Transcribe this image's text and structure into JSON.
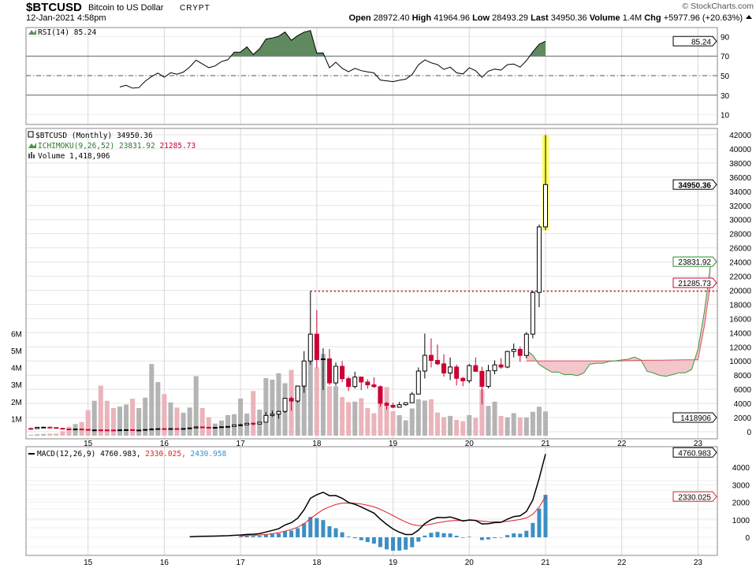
{
  "header": {
    "symbol": "$BTCUSD",
    "name": "Bitcoin to US Dollar",
    "exchange": "CRYPT",
    "datetime": "12-Jan-2021 4:58pm",
    "brand": "© StockCharts.com",
    "open_label": "Open",
    "open": "28972.40",
    "high_label": "High",
    "high": "41964.96",
    "low_label": "Low",
    "low": "28493.29",
    "last_label": "Last",
    "last": "34950.36",
    "volume_label": "Volume",
    "volume": "1.4M",
    "chg_label": "Chg",
    "chg": "+5977.96 (+20.63%)",
    "chg_icon": "triangle-up-icon"
  },
  "chart_data": {
    "type": "candlestick",
    "colors": {
      "up": "#000000",
      "down": "#cc0033",
      "vol_up": "#b4b4b4",
      "vol_down": "#eab4ba",
      "highlight": "#ffff55",
      "rsi": "#000000",
      "rsi_fill": "#5f8a5f",
      "macd": "#000000",
      "signal": "#e02020",
      "hist": "#3b8fc4",
      "span_a": "#3a9a3a",
      "span_b": "#e05060"
    },
    "x_tick_labels": [
      "15",
      "16",
      "17",
      "18",
      "19",
      "20",
      "21",
      "22",
      "23"
    ],
    "rsi": {
      "legend": "RSI(14) 85.24",
      "value_tag": "85.24",
      "ticks": [
        "90",
        "70",
        "50",
        "30",
        "10"
      ],
      "levels": [
        70,
        50,
        30
      ],
      "period": 14
    },
    "price": {
      "legend": "$BTCUSD (Monthly) 34950.36",
      "ichimoku_label": "ICHIMOKU(9,26,52)",
      "ichimoku_a": "23831.92",
      "ichimoku_b": "21285.73",
      "volume_legend": "Volume 1,418,906",
      "last_tag": "34950.36",
      "volume_tag": "1418906",
      "ylim": [
        0,
        42000
      ],
      "ticks": [
        "0",
        "2000",
        "4000",
        "6000",
        "8000",
        "10000",
        "12000",
        "14000",
        "16000",
        "18000",
        "20000",
        "22000",
        "24000",
        "26000",
        "28000",
        "30000",
        "32000",
        "34000",
        "36000",
        "38000",
        "40000",
        "42000"
      ],
      "volume_ticks": [
        "1M",
        "2M",
        "3M",
        "4M",
        "5M",
        "6M"
      ],
      "resistance_line": 19870,
      "dates": [
        "2014-04",
        "2014-05",
        "2014-06",
        "2014-07",
        "2014-08",
        "2014-09",
        "2014-10",
        "2014-11",
        "2014-12",
        "2015-01",
        "2015-02",
        "2015-03",
        "2015-04",
        "2015-05",
        "2015-06",
        "2015-07",
        "2015-08",
        "2015-09",
        "2015-10",
        "2015-11",
        "2015-12",
        "2016-01",
        "2016-02",
        "2016-03",
        "2016-04",
        "2016-05",
        "2016-06",
        "2016-07",
        "2016-08",
        "2016-09",
        "2016-10",
        "2016-11",
        "2016-12",
        "2017-01",
        "2017-02",
        "2017-03",
        "2017-04",
        "2017-05",
        "2017-06",
        "2017-07",
        "2017-08",
        "2017-09",
        "2017-10",
        "2017-11",
        "2017-12",
        "2018-01",
        "2018-02",
        "2018-03",
        "2018-04",
        "2018-05",
        "2018-06",
        "2018-07",
        "2018-08",
        "2018-09",
        "2018-10",
        "2018-11",
        "2018-12",
        "2019-01",
        "2019-02",
        "2019-03",
        "2019-04",
        "2019-05",
        "2019-06",
        "2019-07",
        "2019-08",
        "2019-09",
        "2019-10",
        "2019-11",
        "2019-12",
        "2020-01",
        "2020-02",
        "2020-03",
        "2020-04",
        "2020-05",
        "2020-06",
        "2020-07",
        "2020-08",
        "2020-09",
        "2020-10",
        "2020-11",
        "2020-12",
        "2021-01"
      ],
      "ohlc": [
        [
          457,
          575,
          340,
          447
        ],
        [
          447,
          635,
          420,
          627
        ],
        [
          627,
          680,
          555,
          640
        ],
        [
          640,
          660,
          565,
          586
        ],
        [
          586,
          600,
          445,
          478
        ],
        [
          478,
          500,
          370,
          386
        ],
        [
          386,
          418,
          275,
          338
        ],
        [
          338,
          458,
          315,
          378
        ],
        [
          378,
          385,
          305,
          320
        ],
        [
          320,
          320,
          152,
          217
        ],
        [
          217,
          265,
          200,
          254
        ],
        [
          254,
          300,
          236,
          244
        ],
        [
          244,
          262,
          215,
          236
        ],
        [
          236,
          248,
          225,
          230
        ],
        [
          230,
          268,
          218,
          263
        ],
        [
          263,
          318,
          253,
          284
        ],
        [
          284,
          287,
          162,
          230
        ],
        [
          230,
          245,
          224,
          236
        ],
        [
          236,
          332,
          235,
          314
        ],
        [
          314,
          502,
          300,
          377
        ],
        [
          377,
          467,
          348,
          430
        ],
        [
          430,
          463,
          350,
          369
        ],
        [
          369,
          448,
          366,
          437
        ],
        [
          437,
          440,
          394,
          416
        ],
        [
          416,
          469,
          412,
          448
        ],
        [
          448,
          550,
          436,
          531
        ],
        [
          531,
          780,
          526,
          673
        ],
        [
          673,
          705,
          580,
          624
        ],
        [
          624,
          630,
          470,
          574
        ],
        [
          574,
          640,
          570,
          608
        ],
        [
          608,
          740,
          600,
          700
        ],
        [
          700,
          755,
          680,
          742
        ],
        [
          742,
          980,
          741,
          964
        ],
        [
          964,
          1150,
          752,
          970
        ],
        [
          970,
          1200,
          910,
          1190
        ],
        [
          1190,
          1350,
          890,
          1080
        ],
        [
          1080,
          1400,
          1060,
          1350
        ],
        [
          1350,
          2780,
          1350,
          2300
        ],
        [
          2300,
          2980,
          2100,
          2480
        ],
        [
          2480,
          2950,
          1830,
          2870
        ],
        [
          2870,
          4740,
          2670,
          4720
        ],
        [
          4720,
          4980,
          2970,
          4340
        ],
        [
          4340,
          6470,
          4110,
          6450
        ],
        [
          6450,
          11400,
          5500,
          10000
        ],
        [
          10000,
          19870,
          9500,
          13800
        ],
        [
          13800,
          17200,
          9000,
          10200
        ],
        [
          10200,
          11800,
          5900,
          10300
        ],
        [
          10300,
          11700,
          6600,
          6900
        ],
        [
          6900,
          9800,
          6500,
          9250
        ],
        [
          9250,
          10000,
          7000,
          7500
        ],
        [
          7500,
          7800,
          5750,
          6390
        ],
        [
          6390,
          8500,
          6100,
          7730
        ],
        [
          7730,
          7780,
          5880,
          7030
        ],
        [
          7030,
          7420,
          6100,
          6630
        ],
        [
          6630,
          7680,
          6200,
          6370
        ],
        [
          6370,
          6550,
          3550,
          4020
        ],
        [
          4020,
          4240,
          3150,
          3740
        ],
        [
          3740,
          4100,
          3350,
          3460
        ],
        [
          3460,
          4200,
          3390,
          3820
        ],
        [
          3820,
          4130,
          3680,
          4100
        ],
        [
          4100,
          5620,
          4080,
          5320
        ],
        [
          5320,
          9090,
          5320,
          8580
        ],
        [
          8580,
          13880,
          7530,
          10800
        ],
        [
          10800,
          13200,
          9100,
          10080
        ],
        [
          10080,
          12330,
          9400,
          9600
        ],
        [
          9600,
          10950,
          7800,
          8300
        ],
        [
          8300,
          10500,
          7300,
          9150
        ],
        [
          9150,
          9500,
          6550,
          7550
        ],
        [
          7550,
          7750,
          6430,
          7200
        ],
        [
          7200,
          9580,
          6870,
          9350
        ],
        [
          9350,
          10500,
          8450,
          8540
        ],
        [
          8540,
          9190,
          3850,
          6410
        ],
        [
          6410,
          9460,
          6150,
          8620
        ],
        [
          8620,
          10080,
          8120,
          9450
        ],
        [
          9450,
          10400,
          8900,
          9140
        ],
        [
          9140,
          11440,
          8980,
          11350
        ],
        [
          11350,
          12470,
          10520,
          11650
        ],
        [
          11650,
          12070,
          9880,
          10780
        ],
        [
          10780,
          14100,
          10370,
          13800
        ],
        [
          13800,
          19900,
          13200,
          19700
        ],
        [
          19700,
          29300,
          17600,
          28970
        ],
        [
          28972.4,
          41964.96,
          28493.29,
          34950.36
        ]
      ],
      "volume_millions": [
        0.05,
        0.08,
        0.1,
        0.12,
        0.12,
        0.26,
        0.53,
        0.68,
        0.8,
        1.5,
        2.05,
        2.94,
        2.05,
        1.62,
        1.71,
        1.83,
        2.17,
        1.62,
        2.23,
        4.21,
        3.15,
        2.44,
        1.95,
        1.65,
        1.35,
        1.65,
        3.5,
        1.62,
        1.08,
        0.71,
        0.89,
        1.21,
        1.26,
        2.18,
        1.3,
        2.62,
        1.53,
        3.38,
        3.29,
        3.67,
        3.08,
        3.86,
        2.95,
        4.3,
        5.07,
        4.0,
        4.8,
        2.9,
        2.9,
        2.27,
        1.97,
        2.0,
        2.2,
        1.62,
        1.32,
        2.83,
        2.85,
        1.44,
        1.2,
        0.9,
        1.6,
        2.14,
        2.06,
        2.14,
        1.36,
        1.09,
        1.16,
        0.93,
        0.85,
        1.21,
        1.04,
        2.7,
        1.75,
        2.0,
        1.16,
        1.07,
        1.32,
        1.07,
        1.07,
        1.4,
        1.7,
        1.42
      ]
    },
    "macd": {
      "legend_main": "MACD(12,26,9) 4760.983",
      "legend_signal": "2330.025",
      "legend_hist": "2430.958",
      "macd_tag": "4760.983",
      "signal_tag": "2330.025",
      "ticks": [
        "0",
        "1000",
        "2000",
        "3000",
        "4000"
      ]
    }
  }
}
